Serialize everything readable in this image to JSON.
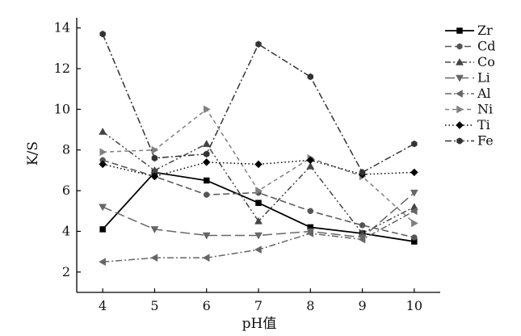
{
  "chart_data": {
    "type": "line",
    "xlabel": "pH值",
    "ylabel": "K/S",
    "x": [
      4,
      5,
      6,
      7,
      8,
      9,
      10
    ],
    "xlim": [
      3.5,
      10.5
    ],
    "ylim": [
      1,
      14.5
    ],
    "yticks": [
      2,
      4,
      6,
      8,
      10,
      12,
      14
    ],
    "grid": false,
    "legend_position": "top-right",
    "series": [
      {
        "name": "Zr",
        "values": [
          4.1,
          6.9,
          6.5,
          5.4,
          4.2,
          3.9,
          3.5
        ],
        "color": "#000000",
        "marker": "square",
        "dash": "solid"
      },
      {
        "name": "Cd",
        "values": [
          7.5,
          6.7,
          5.8,
          5.9,
          5.0,
          4.3,
          3.7
        ],
        "color": "#555555",
        "marker": "circle",
        "dash": "dash"
      },
      {
        "name": "Co",
        "values": [
          8.9,
          7.0,
          8.3,
          4.5,
          7.2,
          3.9,
          5.2
        ],
        "color": "#444444",
        "marker": "triangle-up",
        "dash": "dashdotdot"
      },
      {
        "name": "Li",
        "values": [
          5.2,
          4.1,
          3.8,
          3.8,
          4.0,
          3.7,
          5.9
        ],
        "color": "#666666",
        "marker": "triangle-down",
        "dash": "longdash"
      },
      {
        "name": "Al",
        "values": [
          2.5,
          2.7,
          2.7,
          3.1,
          3.9,
          3.6,
          5.0
        ],
        "color": "#666666",
        "marker": "triangle-left",
        "dash": "dashdot"
      },
      {
        "name": "Ni",
        "values": [
          7.9,
          8.0,
          10.0,
          6.0,
          7.6,
          6.7,
          4.4
        ],
        "color": "#808080",
        "marker": "triangle-right",
        "dash": "shortdash"
      },
      {
        "name": "Ti",
        "values": [
          7.3,
          6.7,
          7.4,
          7.3,
          7.5,
          6.8,
          6.9
        ],
        "color": "#000000",
        "marker": "diamond",
        "dash": "dot"
      },
      {
        "name": "Fe",
        "values": [
          13.7,
          7.6,
          7.8,
          13.2,
          11.6,
          6.9,
          8.3
        ],
        "color": "#333333",
        "marker": "pentagon",
        "dash": "dashdot"
      }
    ]
  }
}
